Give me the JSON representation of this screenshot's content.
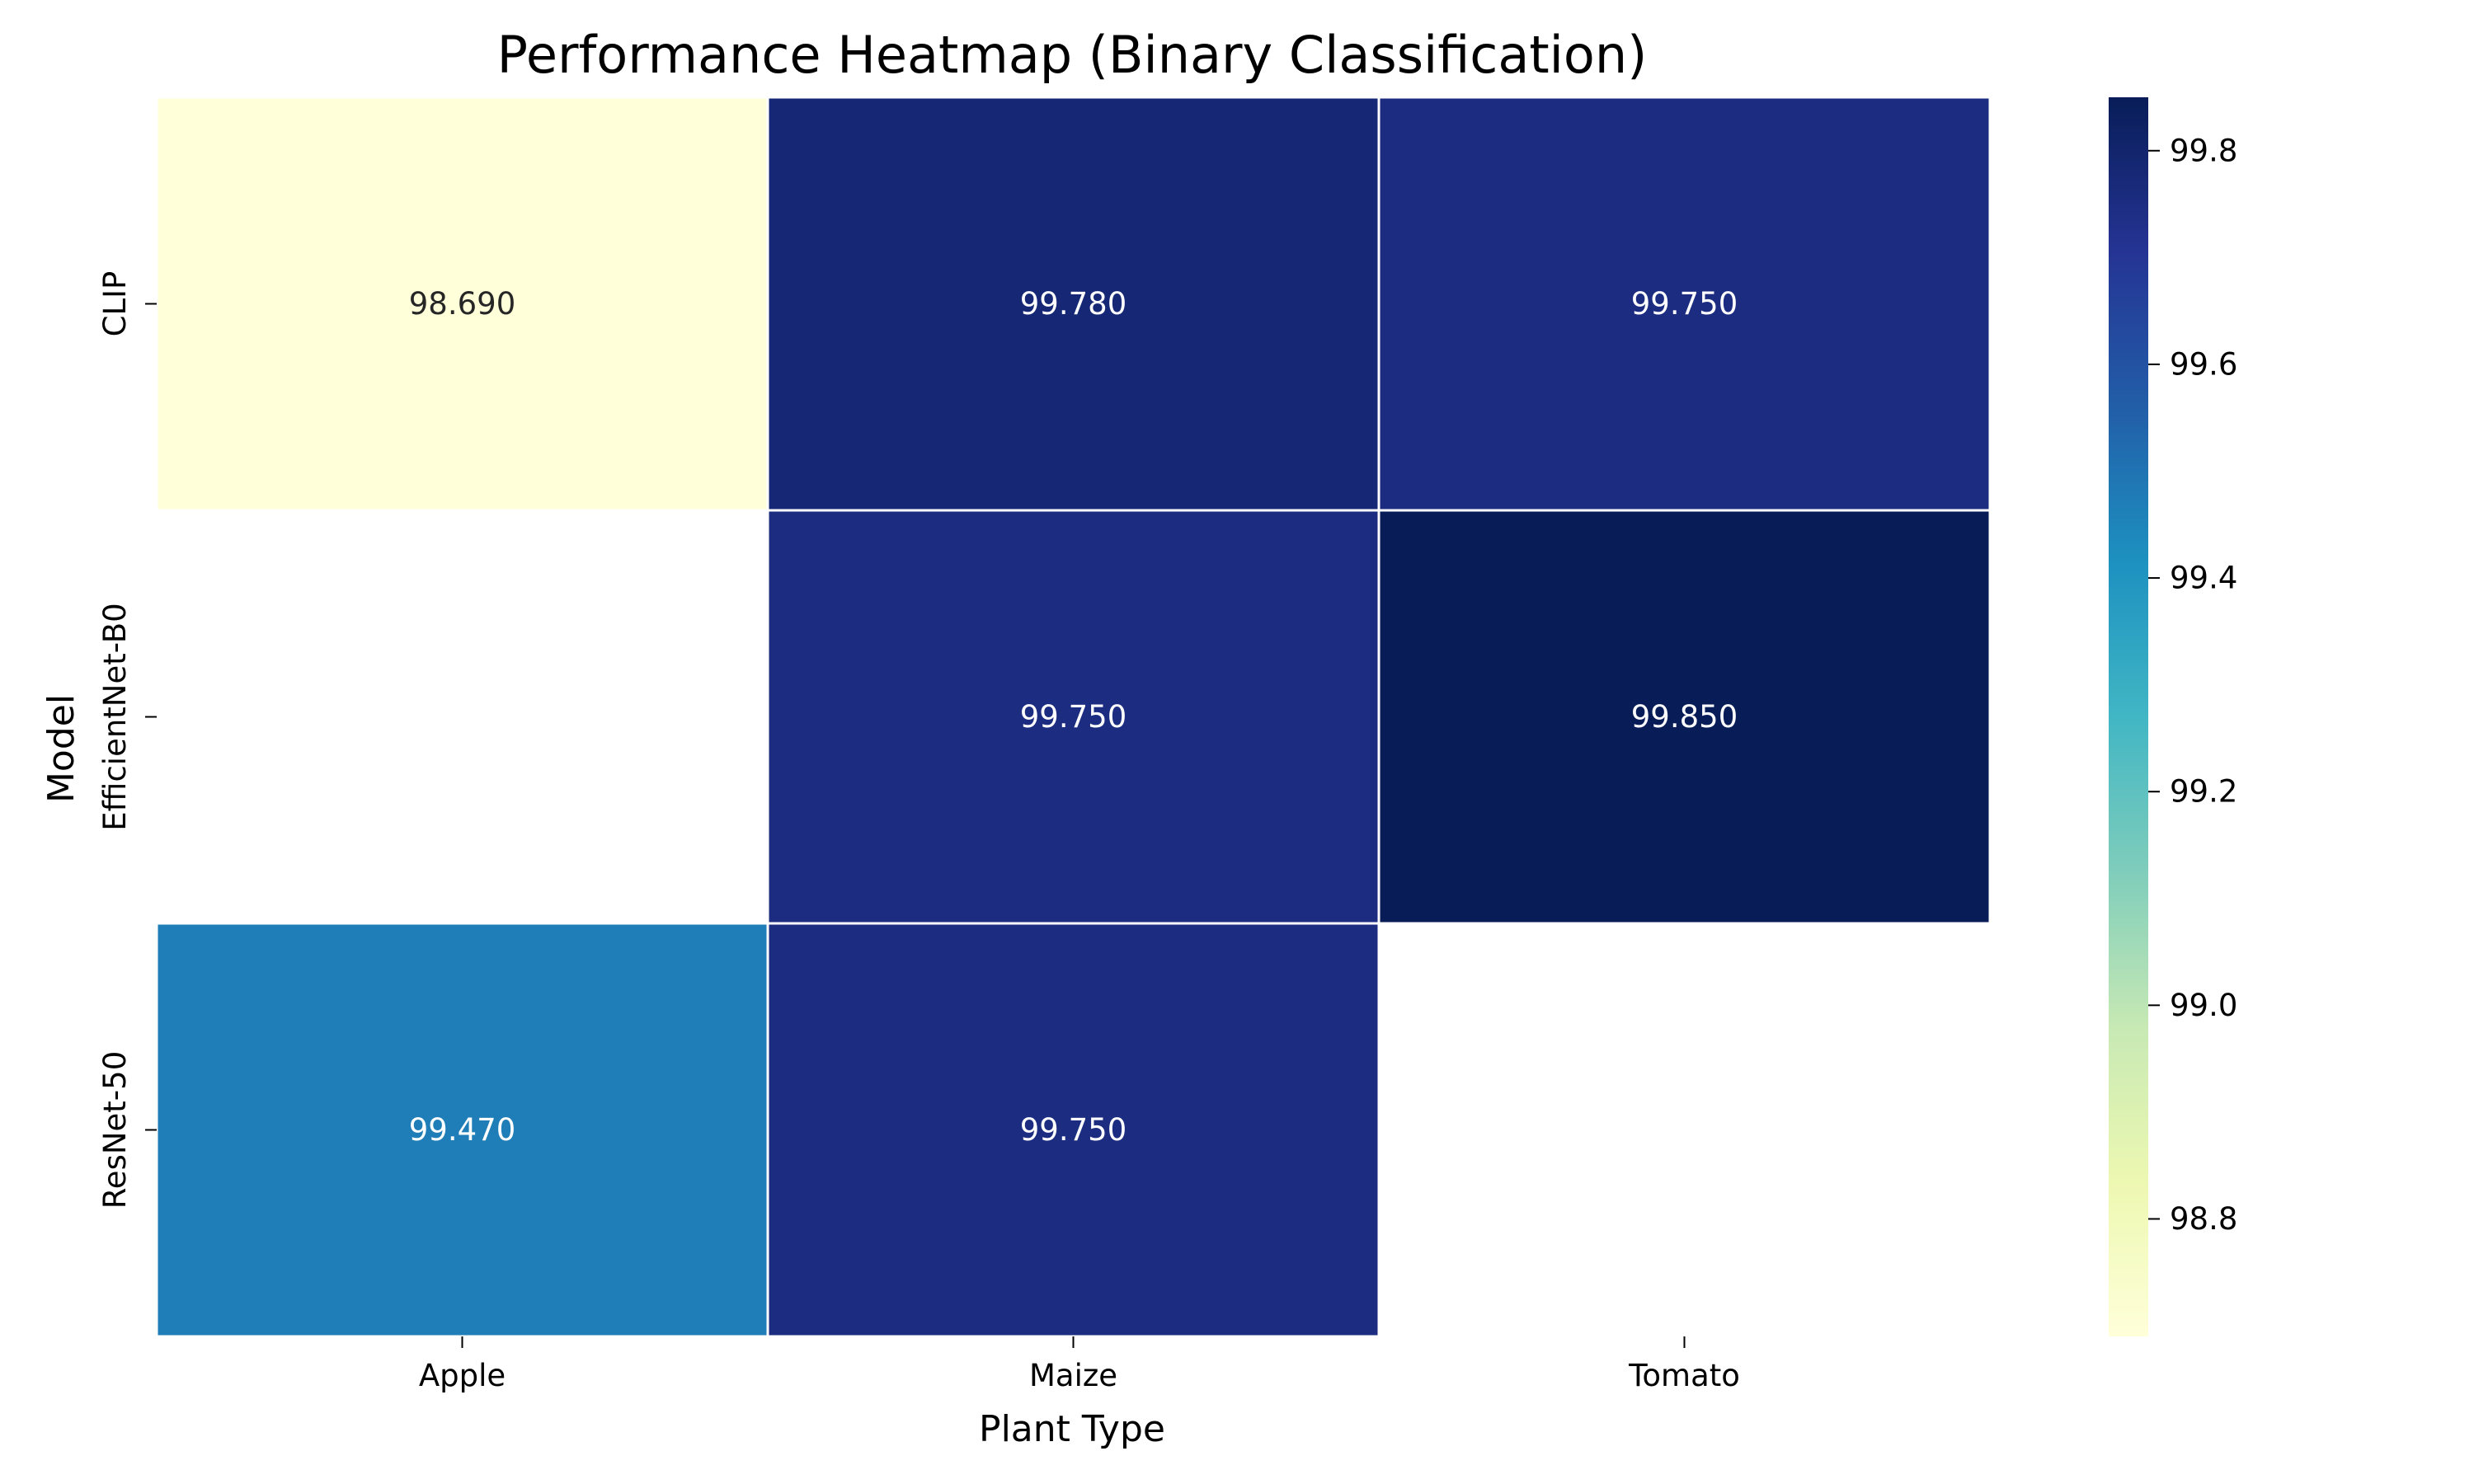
{
  "chart_data": {
    "type": "heatmap",
    "title": "Performance Heatmap (Binary Classification)",
    "xlabel": "Plant Type",
    "ylabel": "Model",
    "columns": [
      "Apple",
      "Maize",
      "Tomato"
    ],
    "rows": [
      "CLIP",
      "EfficientNet-B0",
      "ResNet-50"
    ],
    "values": [
      [
        98.69,
        99.78,
        99.75
      ],
      [
        null,
        99.75,
        99.85
      ],
      [
        99.47,
        99.75,
        null
      ]
    ],
    "cell_labels": [
      [
        "98.690",
        "99.780",
        "99.750"
      ],
      [
        "",
        "99.750",
        "99.850"
      ],
      [
        "99.470",
        "99.750",
        ""
      ]
    ],
    "color_scale": {
      "name": "YlGnBu",
      "min": 98.69,
      "max": 99.85,
      "ticks": [
        "98.8",
        "99.0",
        "99.2",
        "99.4",
        "99.6",
        "99.8"
      ],
      "stops": [
        "#ffffd9",
        "#edf8b1",
        "#c7e9b4",
        "#7fcdbb",
        "#41b6c4",
        "#1d91c0",
        "#225ea8",
        "#253494",
        "#081d58"
      ]
    },
    "grid": false,
    "legend": "colorbar-right"
  }
}
